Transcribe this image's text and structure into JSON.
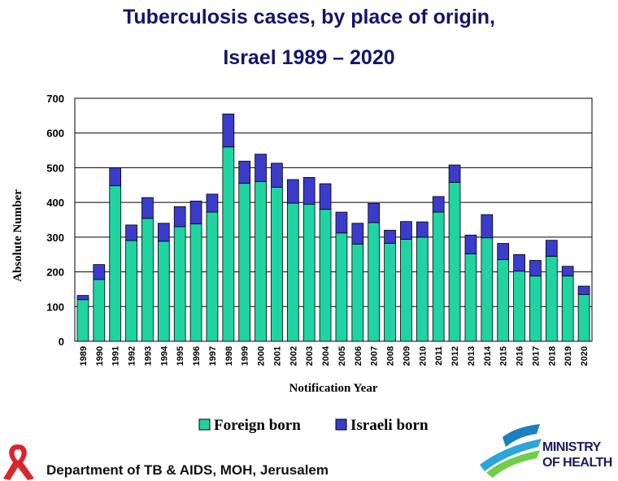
{
  "title_line1": "Tuberculosis cases, by place of origin,",
  "title_line2": "Israel 1989 – 2020",
  "footer": "Department of TB & AIDS, MOH, Jerusalem",
  "logo": {
    "line1": "MINISTRY",
    "line2": "OF HEALTH"
  },
  "chart_data": {
    "type": "bar",
    "stacked": true,
    "categories": [
      "1989",
      "1990",
      "1991",
      "1992",
      "1993",
      "1994",
      "1995",
      "1996",
      "1997",
      "1998",
      "1999",
      "2000",
      "2001",
      "2002",
      "2003",
      "2004",
      "2005",
      "2006",
      "2007",
      "2008",
      "2009",
      "2010",
      "2011",
      "2012",
      "2013",
      "2014",
      "2015",
      "2016",
      "2017",
      "2018",
      "2019",
      "2020"
    ],
    "series": [
      {
        "name": "Foreign born",
        "color": "#1fd4a0",
        "values": [
          120,
          178,
          448,
          290,
          354,
          288,
          330,
          338,
          372,
          560,
          455,
          460,
          444,
          398,
          395,
          380,
          312,
          280,
          342,
          282,
          294,
          300,
          372,
          458,
          252,
          298,
          235,
          202,
          188,
          245,
          188,
          135
        ]
      },
      {
        "name": "Israeli born",
        "color": "#3b3bcc",
        "values": [
          12,
          43,
          52,
          45,
          60,
          52,
          58,
          66,
          52,
          95,
          64,
          79,
          69,
          68,
          77,
          74,
          60,
          60,
          55,
          38,
          51,
          44,
          45,
          50,
          54,
          67,
          47,
          48,
          45,
          46,
          28,
          24
        ]
      }
    ],
    "xlabel": "Notification Year",
    "ylabel": "Absolute Number",
    "ylim": [
      0,
      700
    ],
    "yticks": [
      "0",
      "100",
      "200",
      "300",
      "400",
      "500",
      "600",
      "700"
    ],
    "grid": true,
    "legend": "bottom"
  }
}
